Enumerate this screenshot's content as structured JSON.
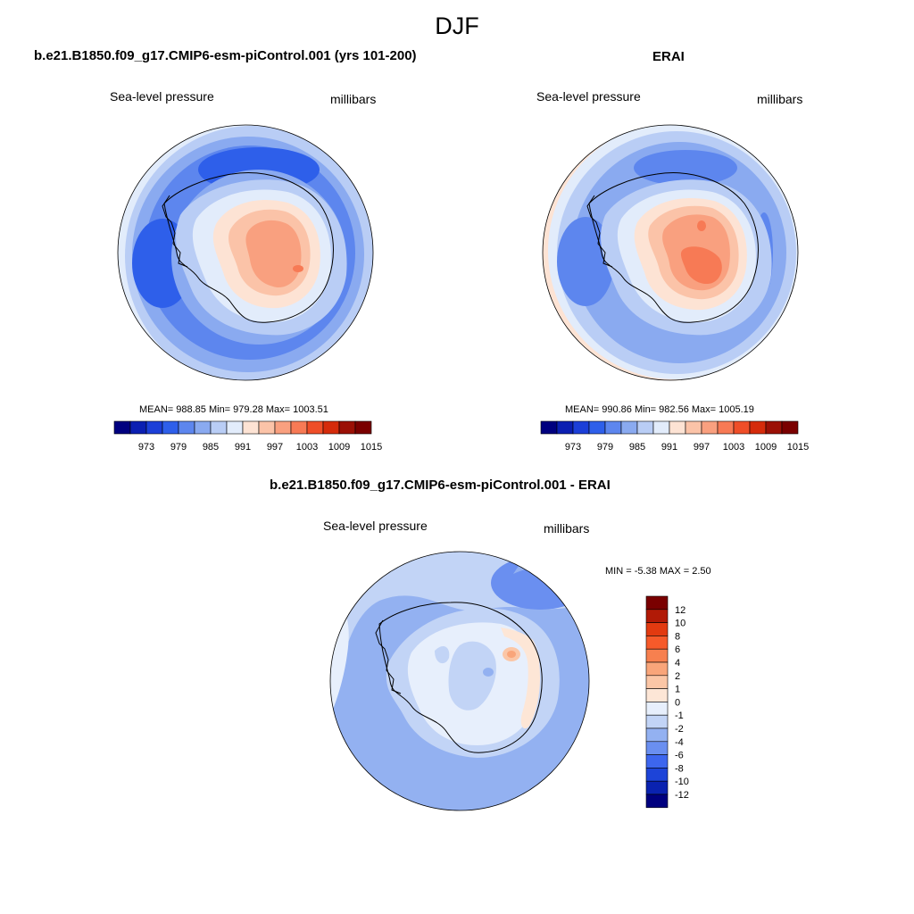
{
  "season": "DJF",
  "panels": [
    {
      "title": "b.e21.B1850.f09_g17.CMIP6-esm-piControl.001 (yrs 101-200)",
      "variable": "Sea-level pressure",
      "units": "millibars",
      "stats": "MEAN= 988.85  Min= 979.28  Max= 1003.51"
    },
    {
      "title": "ERAI",
      "variable": "Sea-level pressure",
      "units": "millibars",
      "stats": "MEAN= 990.86  Min= 982.56  Max= 1005.19"
    },
    {
      "title": "b.e21.B1850.f09_g17.CMIP6-esm-piControl.001 - ERAI",
      "variable": "Sea-level pressure",
      "units": "millibars",
      "stats": "MIN =  -5.38 MAX =   2.50"
    }
  ],
  "colorbar_main": {
    "ticks": [
      "973",
      "979",
      "985",
      "991",
      "997",
      "1003",
      "1009",
      "1015"
    ],
    "colors": [
      "#00007f",
      "#0b1fb2",
      "#1c3fd8",
      "#2e5fea",
      "#5d86ee",
      "#8aaaf0",
      "#b9cdf5",
      "#e2ecfb",
      "#fde3d4",
      "#fbc3a8",
      "#f9a07f",
      "#f77a55",
      "#ef4e28",
      "#d52b0b",
      "#9b1006",
      "#7a0000"
    ]
  },
  "colorbar_diff": {
    "ticks": [
      "12",
      "10",
      "8",
      "6",
      "4",
      "2",
      "1",
      "0",
      "-1",
      "-2",
      "-4",
      "-6",
      "-8",
      "-10",
      "-12"
    ],
    "colors": [
      "#7a0000",
      "#b11a06",
      "#e23a10",
      "#f65a2a",
      "#f7804f",
      "#f9a57a",
      "#fbc6a6",
      "#fde6d6",
      "#e7effc",
      "#c2d4f6",
      "#93b1f1",
      "#6a8ff0",
      "#3d66ee",
      "#1d44d8",
      "#0a22b0",
      "#00007f"
    ]
  }
}
